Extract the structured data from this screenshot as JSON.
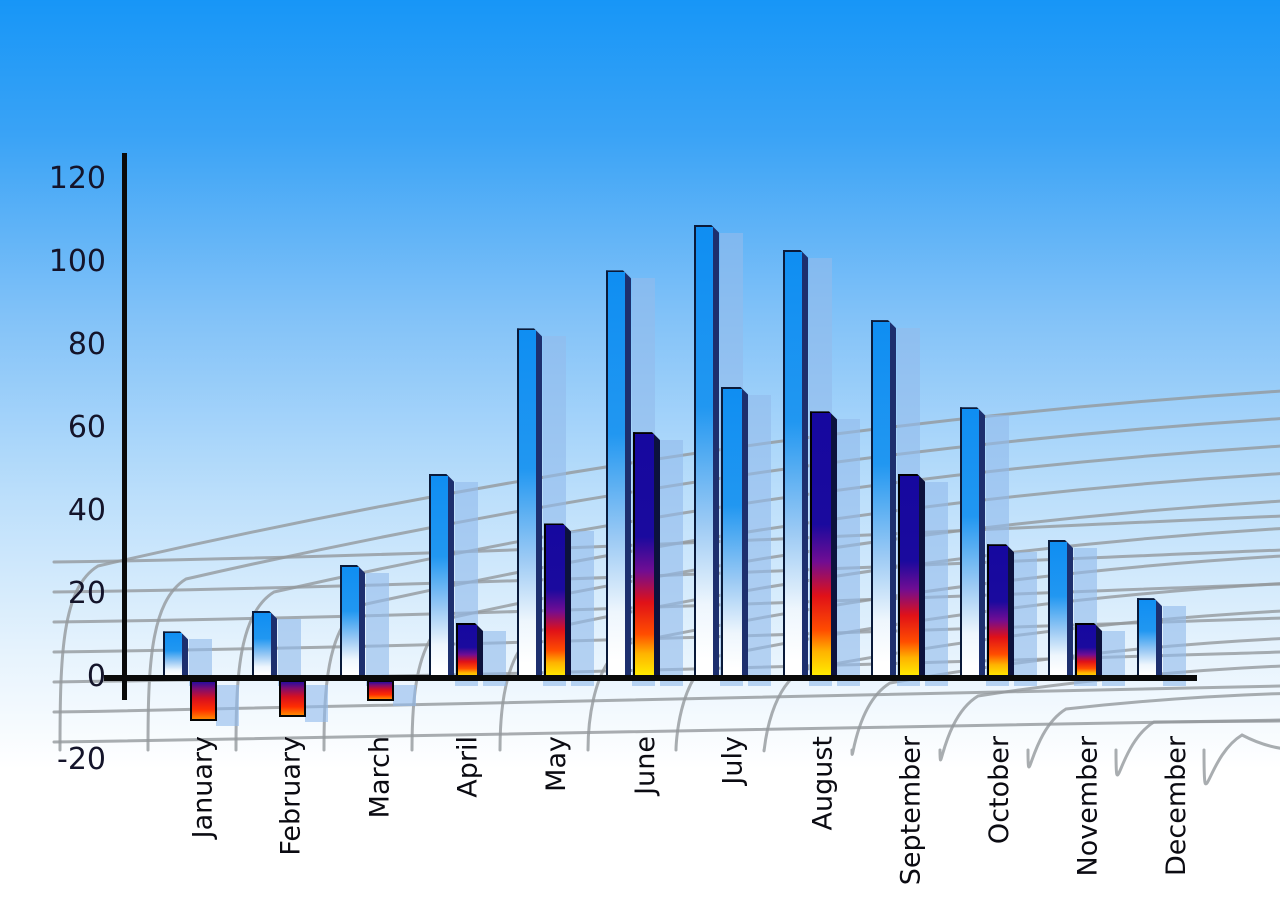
{
  "chart_data": {
    "type": "bar",
    "title": "",
    "categories": [
      "January",
      "February",
      "March",
      "April",
      "May",
      "June",
      "July",
      "August",
      "September",
      "October",
      "November",
      "December"
    ],
    "series": [
      {
        "name": "primary-blue-bars",
        "values": [
          11,
          16,
          27,
          49,
          84,
          98,
          109,
          103,
          86,
          65,
          33,
          19
        ]
      },
      {
        "name": "secondary-bars",
        "values": [
          -10,
          -9,
          -5,
          13,
          37,
          59,
          70,
          64,
          49,
          32,
          13,
          null
        ]
      }
    ],
    "secondary_bar_styles": [
      "negative",
      "negative",
      "negative",
      "heat",
      "heat",
      "heat",
      "blue",
      "heat",
      "heat",
      "heat",
      "heat",
      "none"
    ],
    "xlabel": "",
    "ylabel": "",
    "y_axis": {
      "ticks": [
        120,
        100,
        80,
        60,
        40,
        20,
        0,
        -20
      ],
      "min": -20,
      "max": 120
    },
    "grid": true,
    "legend_position": "none"
  },
  "colors": {
    "sky_top": "#1796f7",
    "sky_bottom": "#ffffff",
    "bar_blue_top": "#0f8ef2",
    "bar_blue_bottom": "#ffffff",
    "bar_side_navy": "#1d2f6e",
    "heat_navy": "#16089f",
    "heat_red": "#e01118",
    "heat_yellow": "#fff200",
    "negative_red": "#d8101f",
    "shadow_blue": "rgba(147,188,236,0.62)",
    "grid_gray": "#94989c",
    "axis_black": "#0a0a0a",
    "text_dark": "#14142a"
  }
}
